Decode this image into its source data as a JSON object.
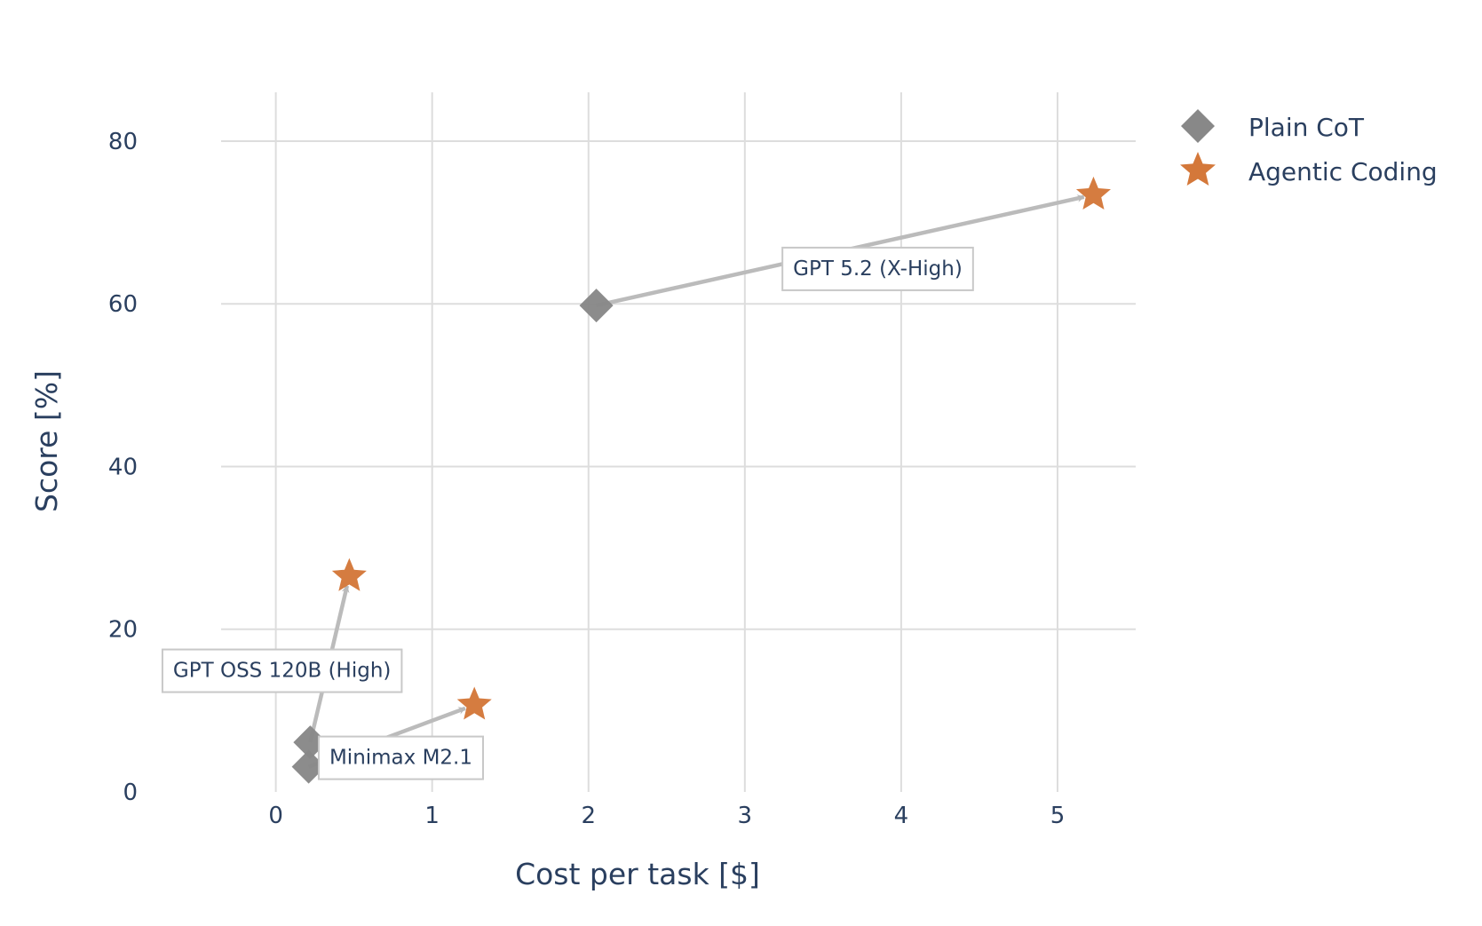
{
  "chart_data": {
    "type": "scatter",
    "xlabel": "Cost per task [$]",
    "ylabel": "Score [%]",
    "xlim": [
      -0.35,
      5.5
    ],
    "ylim": [
      0,
      86
    ],
    "x_ticks": [
      0,
      1,
      2,
      3,
      4,
      5
    ],
    "y_ticks": [
      0,
      20,
      40,
      60,
      80
    ],
    "grid": true,
    "legend_position": "top-right",
    "series": [
      {
        "name": "Plain CoT",
        "marker": "diamond",
        "color": "#888888",
        "points": [
          {
            "x": 2.05,
            "y": 59.8
          },
          {
            "x": 0.22,
            "y": 6.1
          },
          {
            "x": 0.21,
            "y": 3.1
          }
        ]
      },
      {
        "name": "Agentic Coding",
        "marker": "star",
        "color": "#d4783a",
        "points": [
          {
            "x": 5.23,
            "y": 73.4
          },
          {
            "x": 0.47,
            "y": 26.5
          },
          {
            "x": 1.27,
            "y": 10.7
          }
        ]
      }
    ],
    "annotations": [
      {
        "text": "GPT 5.2 (X-High)",
        "from": {
          "x": 2.05,
          "y": 59.8
        },
        "to": {
          "x": 5.23,
          "y": 73.4
        }
      },
      {
        "text": "GPT OSS 120B (High)",
        "from": {
          "x": 0.22,
          "y": 6.1
        },
        "to": {
          "x": 0.47,
          "y": 26.5
        }
      },
      {
        "text": "Minimax M2.1",
        "from": {
          "x": 0.21,
          "y": 3.1
        },
        "to": {
          "x": 1.27,
          "y": 10.7
        }
      }
    ],
    "colors": {
      "grid": "#dddddd",
      "arrow": "#bbbbbb",
      "text": "#2a3f5f",
      "annotation_border": "#c8c8c8"
    }
  }
}
